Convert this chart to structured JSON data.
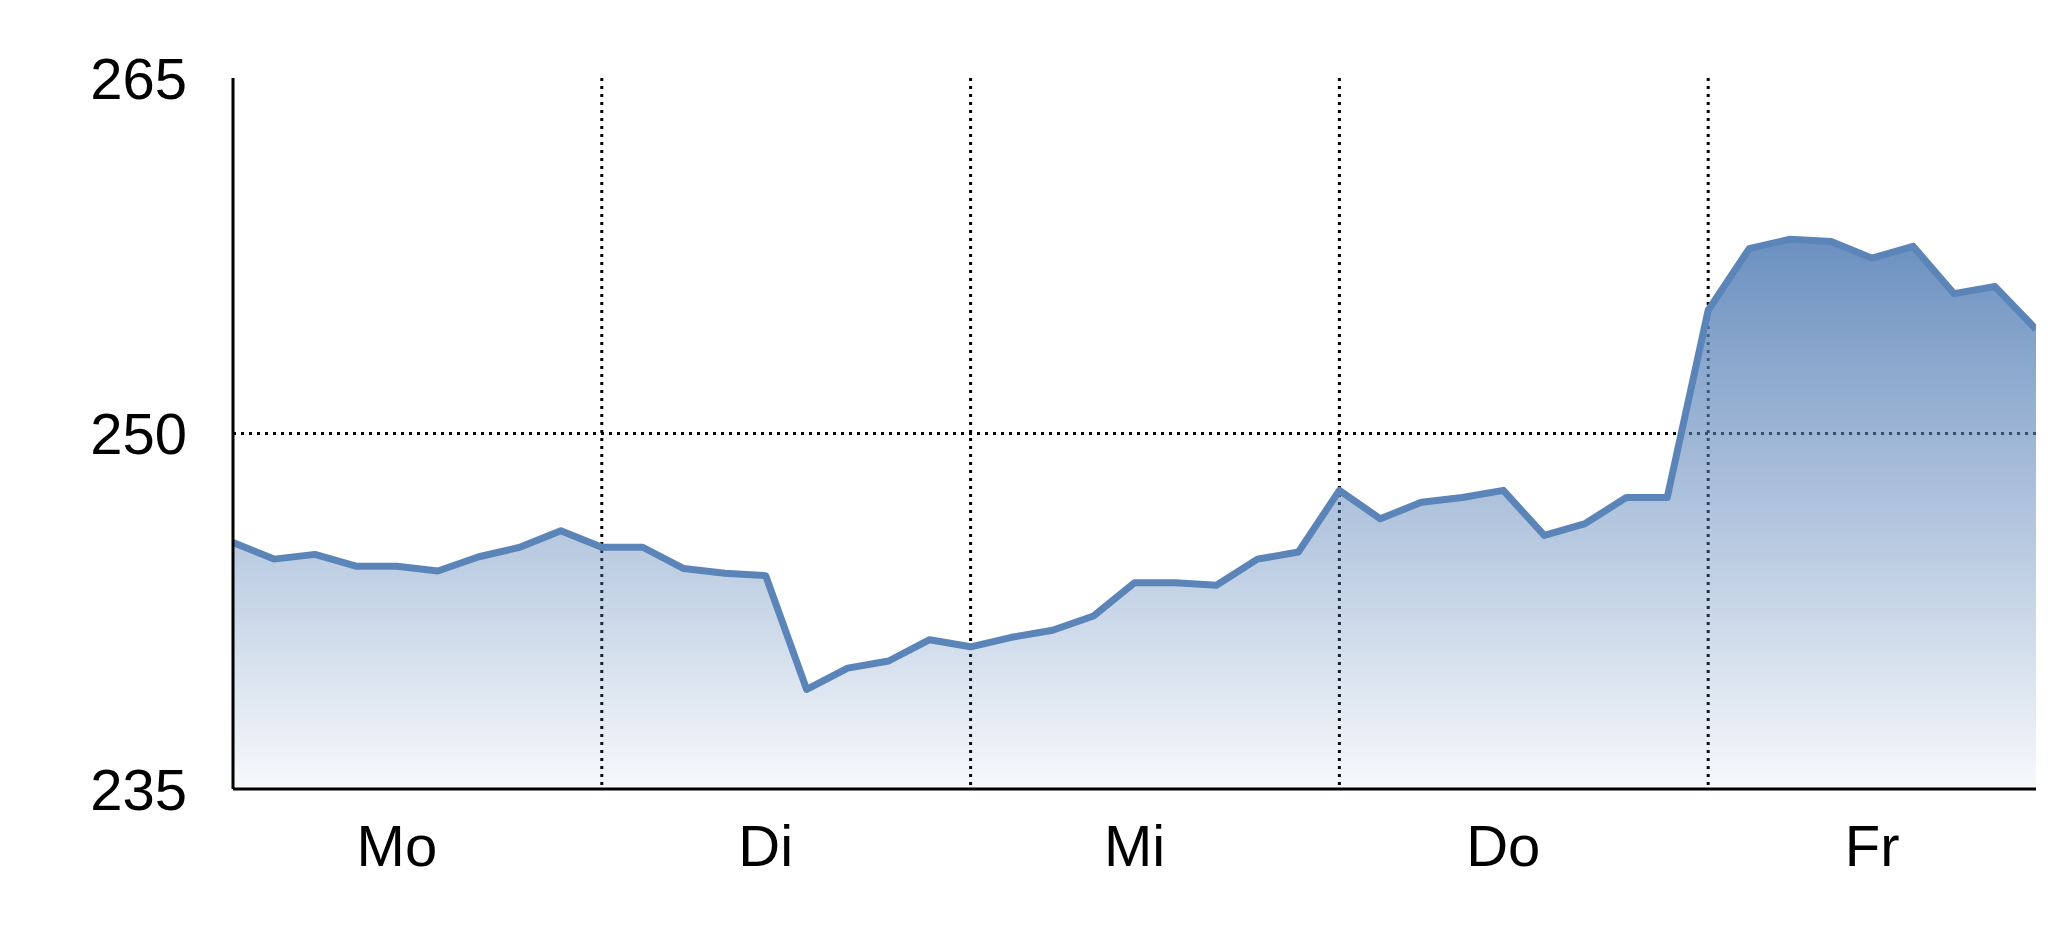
{
  "chart_data": {
    "type": "area",
    "categories": [
      null,
      null,
      null,
      null,
      "Mo",
      null,
      null,
      null,
      null,
      null,
      null,
      null,
      null,
      "Di",
      null,
      null,
      null,
      null,
      null,
      null,
      null,
      null,
      "Mi",
      null,
      null,
      null,
      null,
      null,
      null,
      null,
      null,
      "Do",
      null,
      null,
      null,
      null,
      null,
      null,
      null,
      null,
      "Fr",
      null,
      null,
      null,
      null
    ],
    "series": [
      {
        "color": "#5b84b9",
        "values": [
          245.4,
          244.7,
          244.9,
          244.4,
          244.4,
          244.2,
          244.8,
          245.2,
          245.9,
          245.2,
          245.2,
          244.3,
          244.1,
          244.0,
          239.2,
          240.1,
          240.4,
          241.3,
          241.0,
          241.4,
          241.7,
          242.3,
          243.7,
          243.7,
          243.6,
          244.7,
          245.0,
          247.6,
          246.4,
          247.1,
          247.3,
          247.6,
          245.7,
          246.2,
          247.3,
          247.3,
          255.2,
          257.8,
          258.2,
          258.1,
          257.4,
          257.9,
          255.9,
          256.2,
          254.4
        ]
      }
    ],
    "ylim": [
      235,
      265
    ],
    "yticks": [
      235,
      250,
      265
    ],
    "grid": true,
    "legend": false,
    "marker": "none"
  }
}
